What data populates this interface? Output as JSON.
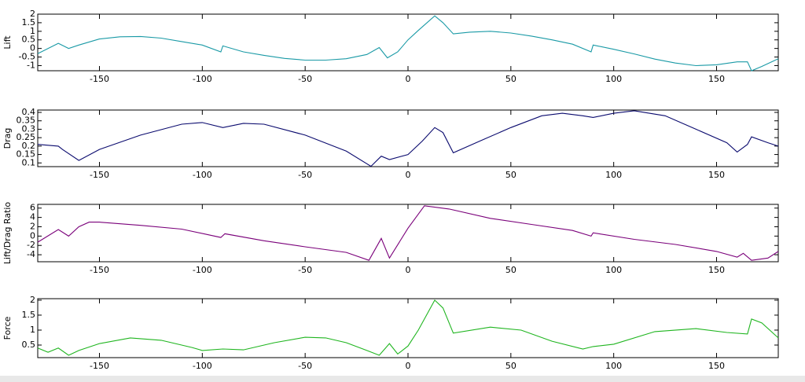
{
  "chart_data": [
    {
      "type": "line",
      "y_label": "Lift",
      "color": "#1a9aa6",
      "x": [
        -180,
        -170,
        -165,
        -160,
        -150,
        -140,
        -130,
        -120,
        -110,
        -100,
        -91,
        -90,
        -80,
        -70,
        -60,
        -50,
        -40,
        -30,
        -20,
        -14,
        -10,
        -5,
        0,
        5,
        13,
        17,
        22,
        30,
        40,
        50,
        60,
        70,
        80,
        89,
        90,
        100,
        110,
        120,
        130,
        140,
        150,
        160,
        165,
        167,
        172,
        180
      ],
      "values": [
        -0.3,
        0.3,
        0,
        0.2,
        0.55,
        0.68,
        0.7,
        0.6,
        0.4,
        0.2,
        -0.2,
        0.15,
        -0.2,
        -0.4,
        -0.58,
        -0.68,
        -0.68,
        -0.6,
        -0.35,
        0.05,
        -0.55,
        -0.2,
        0.5,
        1.05,
        1.9,
        1.5,
        0.85,
        0.95,
        1,
        0.9,
        0.72,
        0.5,
        0.25,
        -0.2,
        0.2,
        -0.05,
        -0.32,
        -0.62,
        -0.85,
        -1.0,
        -0.95,
        -0.78,
        -0.78,
        -1.3,
        -1.05,
        -0.6
      ],
      "xlim": [
        -180,
        180
      ],
      "xticks": [
        -150,
        -100,
        -50,
        0,
        50,
        100,
        150
      ],
      "ylim": [
        -1.3,
        2
      ],
      "yticks": [
        2,
        1.5,
        1,
        0.5,
        0,
        -0.5,
        -1
      ]
    },
    {
      "type": "line",
      "y_label": "Drag",
      "color": "#0a0a6e",
      "x": [
        -180,
        -170,
        -168,
        -160,
        -150,
        -130,
        -110,
        -100,
        -90,
        -80,
        -70,
        -50,
        -30,
        -18,
        -13,
        -9,
        0,
        7,
        13,
        17,
        22,
        35,
        50,
        65,
        75,
        85,
        90,
        100,
        110,
        125,
        140,
        155,
        160,
        165,
        167,
        175,
        180
      ],
      "values": [
        0.21,
        0.2,
        0.18,
        0.115,
        0.18,
        0.265,
        0.33,
        0.34,
        0.31,
        0.335,
        0.33,
        0.265,
        0.17,
        0.08,
        0.14,
        0.12,
        0.15,
        0.23,
        0.31,
        0.28,
        0.16,
        0.23,
        0.31,
        0.38,
        0.395,
        0.38,
        0.37,
        0.395,
        0.41,
        0.38,
        0.3,
        0.22,
        0.165,
        0.21,
        0.255,
        0.22,
        0.2
      ],
      "xlim": [
        -180,
        180
      ],
      "xticks": [
        -150,
        -100,
        -50,
        0,
        50,
        100,
        150
      ],
      "ylim": [
        0.078,
        0.414
      ],
      "yticks": [
        0.4,
        0.35,
        0.3,
        0.25,
        0.2,
        0.15,
        0.1
      ]
    },
    {
      "type": "line",
      "y_label": "Lift/Drag Ratio",
      "color": "#7a007a",
      "x": [
        -180,
        -170,
        -165,
        -160,
        -155,
        -150,
        -130,
        -110,
        -91,
        -89,
        -70,
        -50,
        -30,
        -19,
        -13,
        -9,
        0,
        8,
        20,
        40,
        60,
        80,
        89,
        90,
        110,
        130,
        150,
        160,
        163,
        167,
        175,
        180
      ],
      "values": [
        -1.3,
        1.4,
        0,
        2,
        3,
        3,
        2.3,
        1.5,
        -0.3,
        0.5,
        -1,
        -2.3,
        -3.5,
        -5.2,
        -0.5,
        -4.7,
        1.7,
        6.5,
        5.8,
        3.8,
        2.5,
        1.2,
        0,
        0.7,
        -0.7,
        -1.8,
        -3.3,
        -4.5,
        -3.7,
        -5.2,
        -4.7,
        -3.3
      ],
      "xlim": [
        -180,
        180
      ],
      "xticks": [
        -150,
        -100,
        -50,
        0,
        50,
        100,
        150
      ],
      "ylim": [
        -5.5,
        6.8
      ],
      "yticks": [
        6,
        4,
        2,
        0,
        -2,
        -4
      ]
    },
    {
      "type": "line",
      "y_label": "Force",
      "color": "#1fb51f",
      "x": [
        -180,
        -175,
        -170,
        -165,
        -160,
        -150,
        -135,
        -120,
        -105,
        -100,
        -90,
        -80,
        -65,
        -50,
        -40,
        -30,
        -20,
        -14,
        -9,
        -5,
        0,
        5,
        13,
        17,
        22,
        40,
        55,
        70,
        85,
        90,
        100,
        120,
        140,
        155,
        165,
        167,
        172,
        180
      ],
      "values": [
        0.4,
        0.26,
        0.4,
        0.16,
        0.32,
        0.55,
        0.74,
        0.66,
        0.42,
        0.32,
        0.37,
        0.34,
        0.58,
        0.76,
        0.74,
        0.58,
        0.32,
        0.16,
        0.55,
        0.2,
        0.47,
        1,
        2,
        1.74,
        0.9,
        1.1,
        1,
        0.63,
        0.37,
        0.45,
        0.53,
        0.95,
        1.05,
        0.92,
        0.87,
        1.37,
        1.24,
        0.74
      ],
      "xlim": [
        -180,
        180
      ],
      "xticks": [
        -150,
        -100,
        -50,
        0,
        50,
        100,
        150
      ],
      "ylim": [
        0.08,
        2.05
      ],
      "yticks": [
        2,
        1.5,
        1,
        0.5
      ]
    }
  ]
}
